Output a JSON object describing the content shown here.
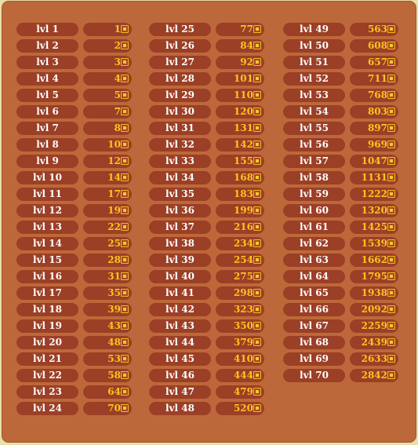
{
  "colors": {
    "panel": "#bd683a",
    "pill": "#9b3f26",
    "level_text": "#ffffff",
    "cost_text": "#ffc41e",
    "background": "#e9dfa8"
  },
  "cost_icon": "coin-icon",
  "columns": [
    {
      "rows": [
        {
          "level": "lvl 1",
          "cost": "1"
        },
        {
          "level": "lvl 2",
          "cost": "2"
        },
        {
          "level": "lvl 3",
          "cost": "3"
        },
        {
          "level": "lvl 4",
          "cost": "4"
        },
        {
          "level": "lvl 5",
          "cost": "5"
        },
        {
          "level": "lvl 6",
          "cost": "7"
        },
        {
          "level": "lvl 7",
          "cost": "8"
        },
        {
          "level": "lvl 8",
          "cost": "10"
        },
        {
          "level": "lvl 9",
          "cost": "12"
        },
        {
          "level": "lvl 10",
          "cost": "14"
        },
        {
          "level": "lvl 11",
          "cost": "17"
        },
        {
          "level": "lvl 12",
          "cost": "19"
        },
        {
          "level": "lvl 13",
          "cost": "22"
        },
        {
          "level": "lvl 14",
          "cost": "25"
        },
        {
          "level": "lvl 15",
          "cost": "28"
        },
        {
          "level": "lvl 16",
          "cost": "31"
        },
        {
          "level": "lvl 17",
          "cost": "35"
        },
        {
          "level": "lvl 18",
          "cost": "39"
        },
        {
          "level": "lvl 19",
          "cost": "43"
        },
        {
          "level": "lvl 20",
          "cost": "48"
        },
        {
          "level": "lvl 21",
          "cost": "53"
        },
        {
          "level": "lvl 22",
          "cost": "58"
        },
        {
          "level": "lvl 23",
          "cost": "64"
        },
        {
          "level": "lvl 24",
          "cost": "70"
        }
      ]
    },
    {
      "rows": [
        {
          "level": "lvl 25",
          "cost": "77"
        },
        {
          "level": "lvl 26",
          "cost": "84"
        },
        {
          "level": "lvl 27",
          "cost": "92"
        },
        {
          "level": "lvl 28",
          "cost": "101"
        },
        {
          "level": "lvl 29",
          "cost": "110"
        },
        {
          "level": "lvl 30",
          "cost": "120"
        },
        {
          "level": "lvl 31",
          "cost": "131"
        },
        {
          "level": "lvl 32",
          "cost": "142"
        },
        {
          "level": "lvl 33",
          "cost": "155"
        },
        {
          "level": "lvl 34",
          "cost": "168"
        },
        {
          "level": "lvl 35",
          "cost": "183"
        },
        {
          "level": "lvl 36",
          "cost": "199"
        },
        {
          "level": "lvl 37",
          "cost": "216"
        },
        {
          "level": "lvl 38",
          "cost": "234"
        },
        {
          "level": "lvl 39",
          "cost": "254"
        },
        {
          "level": "lvl 40",
          "cost": "275"
        },
        {
          "level": "lvl 41",
          "cost": "298"
        },
        {
          "level": "lvl 42",
          "cost": "323"
        },
        {
          "level": "lvl 43",
          "cost": "350"
        },
        {
          "level": "lvl 44",
          "cost": "379"
        },
        {
          "level": "lvl 45",
          "cost": "410"
        },
        {
          "level": "lvl 46",
          "cost": "444"
        },
        {
          "level": "lvl 47",
          "cost": "479"
        },
        {
          "level": "lvl 48",
          "cost": "520"
        }
      ]
    },
    {
      "rows": [
        {
          "level": "lvl 49",
          "cost": "563"
        },
        {
          "level": "lvl 50",
          "cost": "608"
        },
        {
          "level": "lvl 51",
          "cost": "657"
        },
        {
          "level": "lvl 52",
          "cost": "711"
        },
        {
          "level": "lvl 53",
          "cost": "768"
        },
        {
          "level": "lvl 54",
          "cost": "803"
        },
        {
          "level": "lvl 55",
          "cost": "897"
        },
        {
          "level": "lvl 56",
          "cost": "969"
        },
        {
          "level": "lvl 57",
          "cost": "1047"
        },
        {
          "level": "lvl 58",
          "cost": "1131"
        },
        {
          "level": "lvl 59",
          "cost": "1222"
        },
        {
          "level": "lvl 60",
          "cost": "1320"
        },
        {
          "level": "lvl 61",
          "cost": "1425"
        },
        {
          "level": "lvl 62",
          "cost": "1539"
        },
        {
          "level": "lvl 63",
          "cost": "1662"
        },
        {
          "level": "lvl 64",
          "cost": "1795"
        },
        {
          "level": "lvl 65",
          "cost": "1938"
        },
        {
          "level": "lvl 66",
          "cost": "2092"
        },
        {
          "level": "lvl 67",
          "cost": "2259"
        },
        {
          "level": "lvl 68",
          "cost": "2439"
        },
        {
          "level": "lvl 69",
          "cost": "2633"
        },
        {
          "level": "lvl 70",
          "cost": "2842"
        }
      ]
    }
  ]
}
